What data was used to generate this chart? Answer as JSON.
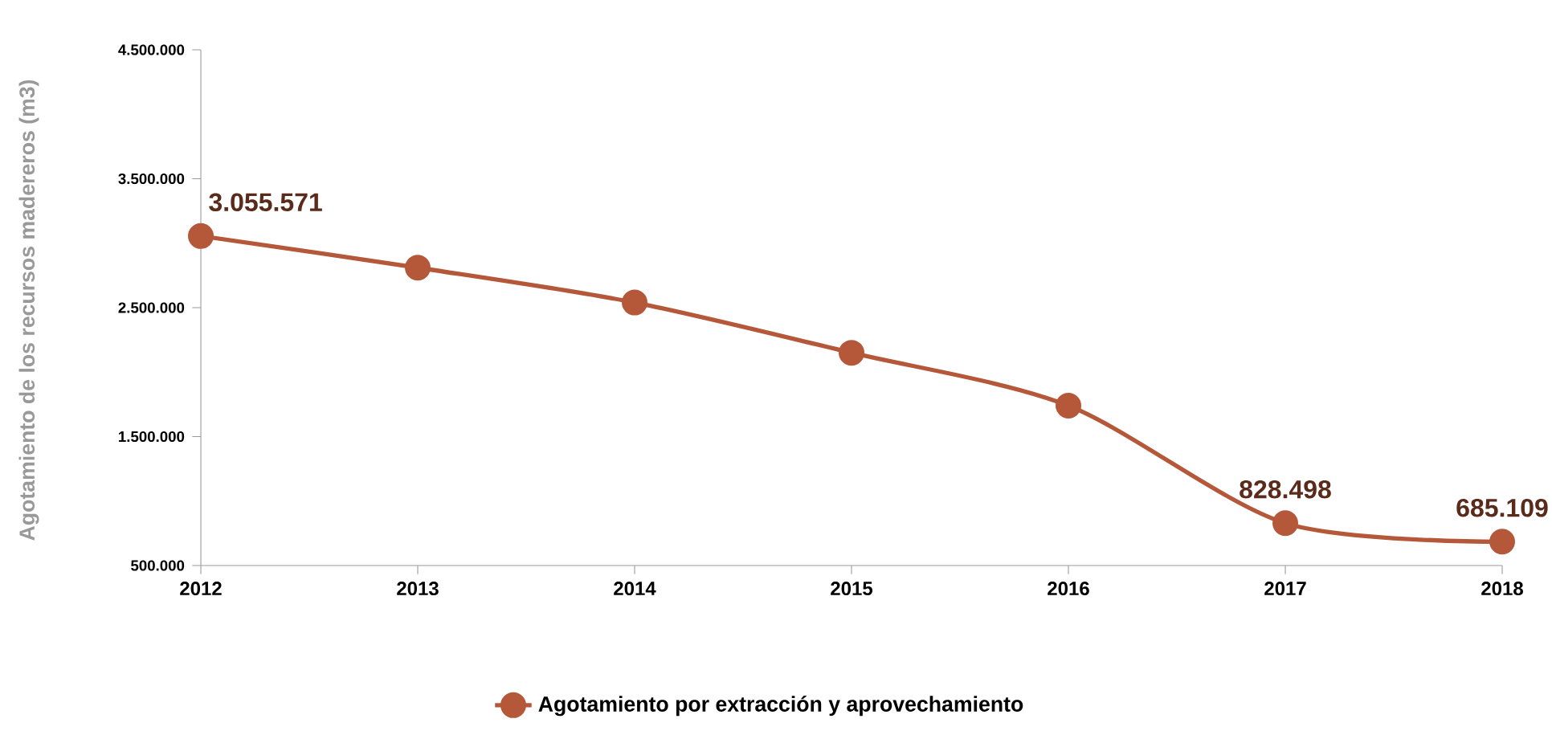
{
  "chart_data": {
    "type": "line",
    "ylabel": "Agotamiento de los recursos madereros (m3)",
    "categories": [
      "2012",
      "2013",
      "2014",
      "2015",
      "2016",
      "2017",
      "2018"
    ],
    "series": [
      {
        "name": "Agotamiento por extracción y aprovechamiento",
        "color": "#b5583a",
        "values": [
          3055571,
          2810000,
          2540000,
          2150000,
          1740000,
          828498,
          685109
        ],
        "value_labels": [
          "3.055.571",
          null,
          null,
          null,
          null,
          "828.498",
          "685.109"
        ]
      }
    ],
    "ylim": [
      500000,
      4500000
    ],
    "yticks": [
      {
        "value": 500000,
        "label": "500.000"
      },
      {
        "value": 1500000,
        "label": "1.500.000"
      },
      {
        "value": 2500000,
        "label": "2.500.000"
      },
      {
        "value": 3500000,
        "label": "3.500.000"
      },
      {
        "value": 4500000,
        "label": "4.500.000"
      }
    ],
    "grid": false,
    "legend": "bottom",
    "marker": "circle",
    "line_style": "solid"
  }
}
